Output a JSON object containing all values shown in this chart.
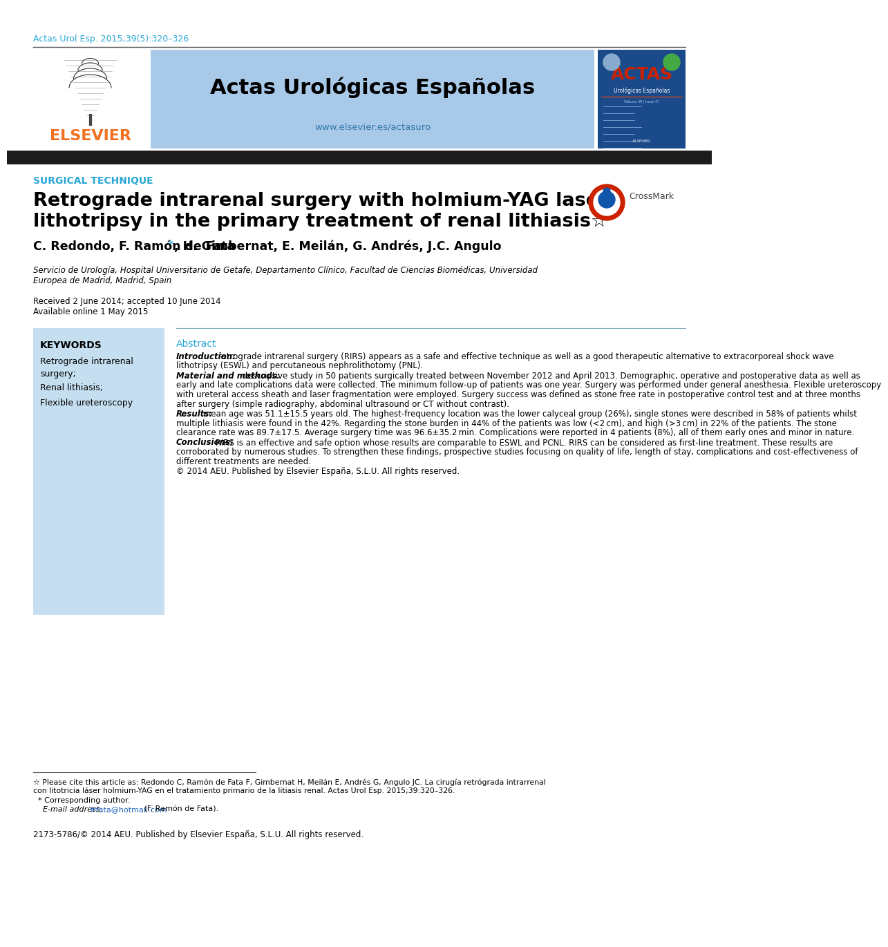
{
  "citation": "Actas Urol Esp. 2015;39(5):320–326",
  "journal_title": "Actas Urológicas Españolas",
  "journal_url": "www.elsevier.es/actasuro",
  "section_label": "SURGICAL TECHNIQUE",
  "article_title_line1": "Retrograde intrarenal surgery with holmium-YAG laser",
  "article_title_line2": "lithotripsy in the primary treatment of renal lithiasis☆",
  "authors_pre": "C. Redondo, F. Ramón de Fata",
  "authors_post": ", H. Gimbernat, E. Meilán, G. Andrés, J.C. Angulo",
  "affiliation_line1": "Servicio de Urología, Hospital Universitario de Getafe, Departamento Clínico, Facultad de Ciencias Biomédicas, Universidad",
  "affiliation_line2": "Europea de Madrid, Madrid, Spain",
  "received": "Received 2 June 2014; accepted 10 June 2014",
  "available": "Available online 1 May 2015",
  "keywords_title": "KEYWORDS",
  "keywords_list": [
    "Retrograde intrarenal\nsurgery;",
    "Renal lithiasis;",
    "Flexible ureteroscopy"
  ],
  "abstract_label": "Abstract",
  "abstract_intro_label": "Introduction:",
  "abstract_intro": " retrograde intrarenal surgery (RIRS) appears as a safe and effective technique as well as a good therapeutic alternative to extracorporeal shock wave lithotripsy (ESWL) and percutaneous nephrolithotomy (PNL).",
  "abstract_mm_label": "Material and methods:",
  "abstract_mm": " descriptive study in 50 patients surgically treated between November 2012 and April 2013. Demographic, operative and postoperative data as well as early and late complications data were collected. The minimum follow-up of patients was one year. Surgery was performed under general anesthesia. Flexible ureteroscopy with ureteral access sheath and laser fragmentation were employed. Surgery success was defined as stone free rate in postoperative control test and at three months after surgery (simple radiography, abdominal ultrasound or CT without contrast).",
  "abstract_results_label": "Results:",
  "abstract_results": " mean age was 51.1±15.5 years old. The highest-frequency location was the lower calyceal group (26%), single stones were described in 58% of patients whilst multiple lithiasis were found in the 42%. Regarding the stone burden in 44% of the patients was low (<2 cm), and high (>3 cm) in 22% of the patients. The stone clearance rate was 89.7±17.5. Average surgery time was 96.6±35.2 min. Complications were reported in 4 patients (8%), all of them early ones and minor in nature.",
  "abstract_concl_label": "Conclusions:",
  "abstract_concl": " RIRS is an effective and safe option whose results are comparable to ESWL and PCNL. RIRS can be considered as first-line treatment. These results are corroborated by numerous studies. To strengthen these findings, prospective studies focusing on quality of life, length of stay, complications and cost-effectiveness of different treatments are needed.",
  "abstract_copyright": "© 2014 AEU. Published by Elsevier España, S.L.U. All rights reserved.",
  "footnote_line1": "☆ Please cite this article as: Redondo C, Ramón de Fata F, Gimbernat H, Meilán E, Andrés G, Angulo JC. La cirugía retrógrada intrarrenal",
  "footnote_line2": "con litotricia láser holmium-YAG en el tratamiento primario de la litiasis renal. Actas Urol Esp. 2015;39:320–326.",
  "footnote_corr": "  * Corresponding author.",
  "footnote_email_label": "    E-mail address: ",
  "footnote_email": "frfata@hotmail.com",
  "footnote_email_suffix": " (F. Ramón de Fata).",
  "footer": "2173-5786/© 2014 AEU. Published by Elsevier España, S.L.U. All rights reserved.",
  "header_bg_color": "#a8c9e8",
  "keywords_bg_color": "#c5dff0",
  "section_color": "#2aa8d8",
  "abstract_label_color": "#2aa8d8",
  "elsevier_color": "#f07020",
  "citation_color": "#2aa8d8",
  "email_color": "#2266bb",
  "author_star_color": "#2aa8d8",
  "dark_bar_color": "#1c1c1c",
  "thin_line_color": "#666666",
  "abstract_line_color": "#7aaabb"
}
